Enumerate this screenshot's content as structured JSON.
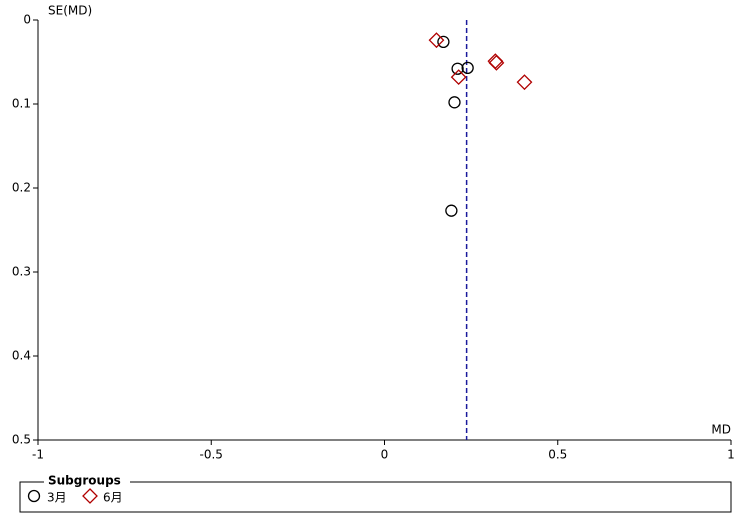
{
  "chart_data": {
    "type": "scatter",
    "x_label": "MD",
    "y_label": "SE(MD)",
    "xlim": [
      -1,
      1
    ],
    "xticks": [
      -1,
      -0.5,
      0,
      0.5,
      1
    ],
    "ylim": [
      0,
      0.5
    ],
    "yticks": [
      0,
      0.1,
      0.2,
      0.3,
      0.4,
      0.5
    ],
    "y_inverted": true,
    "reference_x": 0.237,
    "legend_title": "Subgroups",
    "series": [
      {
        "name": "3月",
        "marker": "circle",
        "color": "#000000",
        "x": [
          0.17,
          0.211,
          0.24,
          0.202,
          0.193
        ],
        "values": [
          0.026,
          0.058,
          0.057,
          0.098,
          0.227
        ]
      },
      {
        "name": "6月",
        "marker": "diamond",
        "color": "#b00000",
        "x": [
          0.15,
          0.214,
          0.32,
          0.323,
          0.404
        ],
        "values": [
          0.024,
          0.068,
          0.049,
          0.051,
          0.074
        ]
      }
    ]
  }
}
